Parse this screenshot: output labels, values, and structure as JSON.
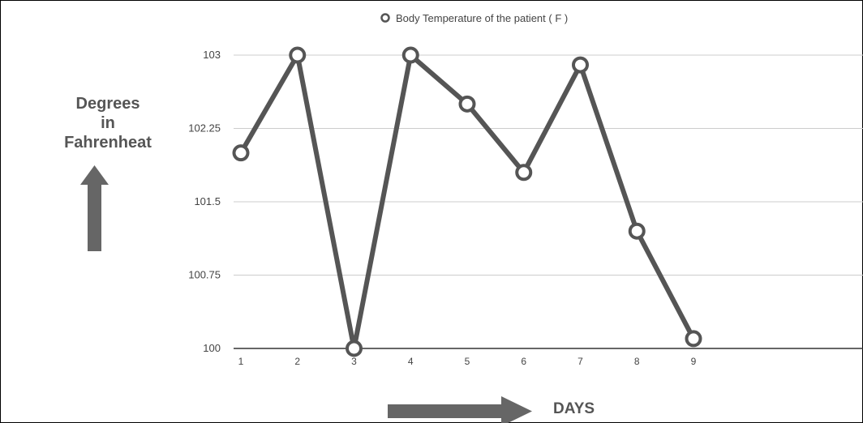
{
  "chart_data": {
    "type": "line",
    "legend": {
      "label": "Body Temperature of the patient ( F )",
      "placement": "top-center"
    },
    "ylabel_lines": [
      "Degrees",
      "in",
      "Fahrenheat"
    ],
    "xlabel": "DAYS",
    "x": [
      1,
      2,
      3,
      4,
      5,
      6,
      7,
      8,
      9
    ],
    "series": [
      {
        "name": "Body Temperature of the patient ( F )",
        "values": [
          102.0,
          103.0,
          100.0,
          103.0,
          102.5,
          101.8,
          102.9,
          101.2,
          100.1
        ]
      }
    ],
    "yticks": [
      100,
      100.75,
      101.5,
      102.25,
      103
    ],
    "ytick_labels": [
      "100",
      "100.75",
      "101.5",
      "102.25",
      "103"
    ],
    "xticks": [
      "1",
      "2",
      "3",
      "4",
      "5",
      "6",
      "7",
      "8",
      "9"
    ],
    "ylim": [
      100,
      103
    ],
    "grid": "horizontal",
    "colors": {
      "line": "#555555",
      "marker_fill": "#ffffff",
      "grid": "#cccccc",
      "axis": "#333333",
      "arrow": "#666666",
      "text": "#444444"
    }
  }
}
